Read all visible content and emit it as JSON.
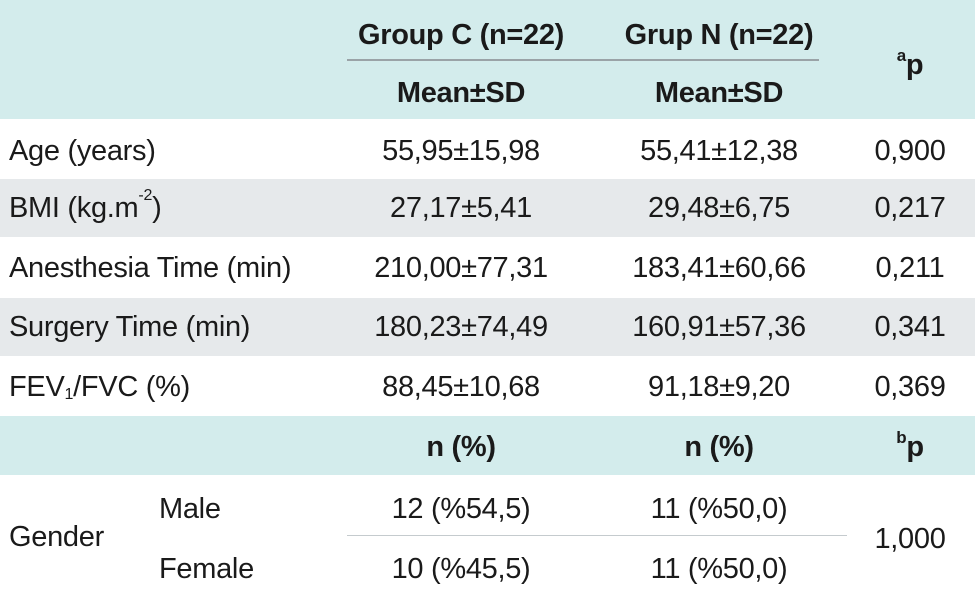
{
  "header": {
    "group_c": "Group C (n=22)",
    "group_n": "Grup N (n=22)",
    "mean_sd_c": "Mean±SD",
    "mean_sd_n": "Mean±SD",
    "p_sup": "a",
    "p_label": "p"
  },
  "rows": [
    {
      "label": "Age (years)",
      "c": "55,95±15,98",
      "n": "55,41±12,38",
      "p": "0,900"
    },
    {
      "label_pre": "BMI (kg.m",
      "label_sup": "-2",
      "label_post": ")",
      "c": "27,17±5,41",
      "n": "29,48±6,75",
      "p": "0,217"
    },
    {
      "label": "Anesthesia Time (min)",
      "c": "210,00±77,31",
      "n": "183,41±60,66",
      "p": "0,211"
    },
    {
      "label": "Surgery Time (min)",
      "c": "180,23±74,49",
      "n": "160,91±57,36",
      "p": "0,341"
    },
    {
      "label_pre": "FEV",
      "label_sub": "1",
      "label_post": "/FVC (%)",
      "c": "88,45±10,68",
      "n": "91,18±9,20",
      "p": "0,369"
    }
  ],
  "subheader": {
    "n_pct_c": "n (%)",
    "n_pct_n": "n (%)",
    "p_sup": "b",
    "p_label": "p"
  },
  "gender": {
    "label": "Gender",
    "p": "1,000",
    "rows": [
      {
        "label": "Male",
        "c": "12 (%54,5)",
        "n": "11 (%50,0)"
      },
      {
        "label": "Female",
        "c": "10 (%45,5)",
        "n": "11 (%50,0)"
      }
    ]
  }
}
